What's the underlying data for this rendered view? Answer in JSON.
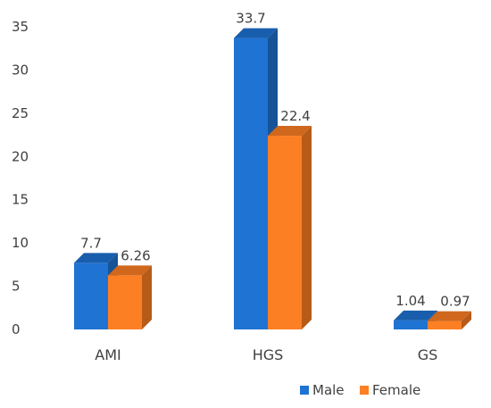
{
  "chart_data": {
    "type": "bar",
    "style": "3d-clustered-column",
    "categories": [
      "AMI",
      "HGS",
      "GS"
    ],
    "series": [
      {
        "name": "Male",
        "values": [
          7.7,
          33.7,
          1.04
        ],
        "labels": [
          "7.7",
          "33.7",
          "1.04"
        ],
        "color": "#1F73D2"
      },
      {
        "name": "Female",
        "values": [
          6.26,
          22.4,
          0.97
        ],
        "labels": [
          "6.26",
          "22.4",
          "0.97"
        ],
        "color": "#FD7F23"
      }
    ],
    "ylim": [
      0,
      35
    ],
    "yticks": [
      "0",
      "5",
      "10",
      "15",
      "20",
      "25",
      "30",
      "35"
    ],
    "grid": false,
    "legend": "bottom-right",
    "title": "",
    "xlabel": "",
    "ylabel": ""
  }
}
